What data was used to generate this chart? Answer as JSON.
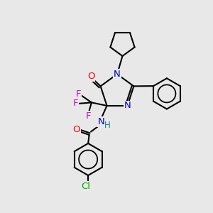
{
  "background_color": "#e8e8e8",
  "atom_colors": {
    "O": "#ff0000",
    "N": "#0000cc",
    "F": "#dd00dd",
    "Cl": "#00aa00",
    "H": "#008888",
    "C": "#000000"
  },
  "figsize": [
    3.0,
    3.0
  ],
  "dpi": 100,
  "xlim": [
    0,
    10
  ],
  "ylim": [
    0,
    10
  ]
}
